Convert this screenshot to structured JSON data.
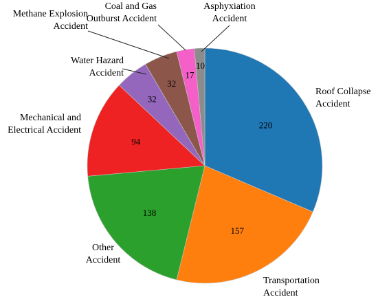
{
  "chart_data": {
    "type": "pie",
    "title": "",
    "start_angle_deg": 0,
    "direction": "clockwise",
    "series": [
      {
        "values": [
          220,
          157,
          138,
          94,
          32,
          32,
          17,
          10
        ],
        "labels": [
          [
            "Roof Collapse",
            "Accident"
          ],
          [
            "Transportation",
            "Accident"
          ],
          [
            "Other",
            "Accident"
          ],
          [
            "Mechanical and",
            "Electrical Accident"
          ],
          [
            "Water Hazard",
            "Accident"
          ],
          [
            "Methane Explosion",
            "Accident"
          ],
          [
            "Coal and Gas",
            "Outburst Accident"
          ],
          [
            "Asphyxiation",
            "Accident"
          ]
        ],
        "value_labels": [
          "220",
          "157",
          "138",
          "94",
          "32",
          "32",
          "17",
          "10"
        ],
        "colors": [
          "#1f77b4",
          "#ff7f0e",
          "#2ca02c",
          "#ee2222",
          "#9467bd",
          "#8c564b",
          "#f45fc8",
          "#8c8c8c"
        ]
      }
    ]
  }
}
